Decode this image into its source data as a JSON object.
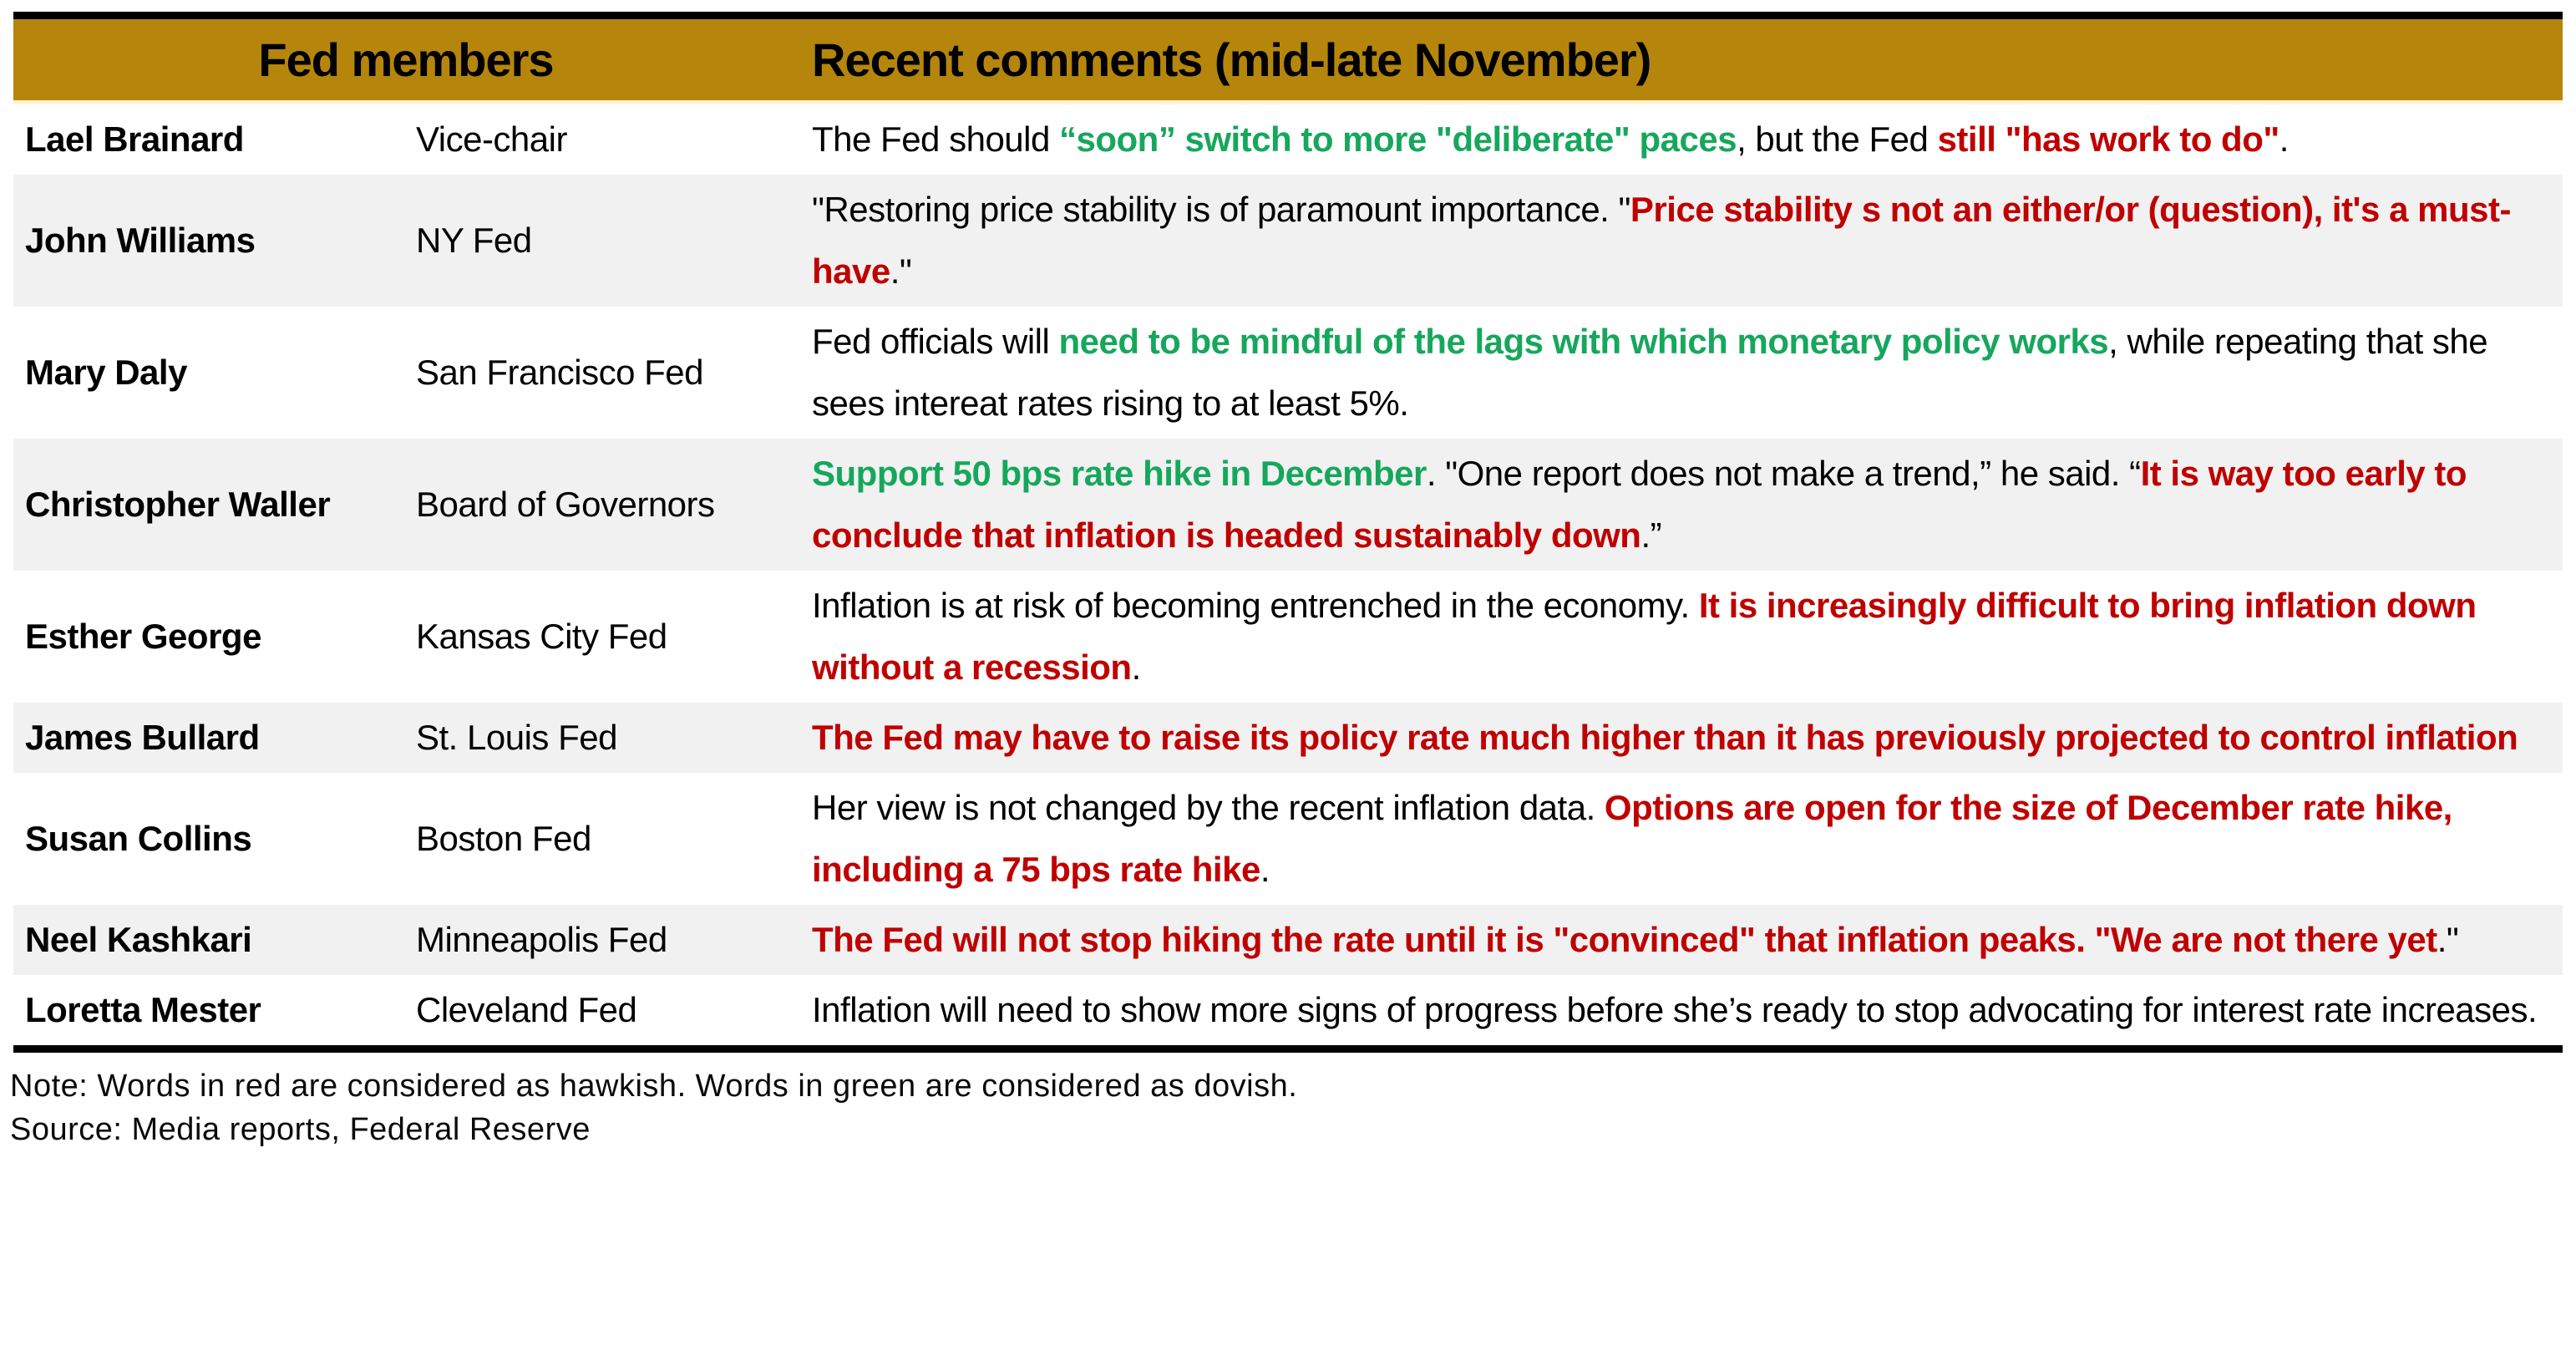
{
  "colors": {
    "header_gold": "#B5860B",
    "hawkish_red": "#C00000",
    "dovish_green": "#16A75C",
    "row_alt_bg": "#F1F1F1",
    "rule_black": "#000000"
  },
  "table": {
    "header": {
      "col_members": "Fed members",
      "col_comments": "Recent comments (mid-late November)"
    },
    "rows": [
      {
        "name": "Lael Brainard",
        "title": "Vice-chair",
        "comment": [
          {
            "text": "The Fed should ",
            "color": "black"
          },
          {
            "text": "“soon” switch to more \"deliberate\" paces",
            "color": "green"
          },
          {
            "text": ", but the Fed ",
            "color": "black"
          },
          {
            "text": "still \"has work to do\"",
            "color": "red"
          },
          {
            "text": ".",
            "color": "black"
          }
        ]
      },
      {
        "name": "John Williams",
        "title": "NY Fed",
        "comment": [
          {
            "text": "\"Restoring price stability is of paramount importance. \"",
            "color": "black"
          },
          {
            "text": "Price stability s not an either/or (question), it's a must-have",
            "color": "red"
          },
          {
            "text": ".\"",
            "color": "black"
          }
        ]
      },
      {
        "name": "Mary Daly",
        "title": "San Francisco Fed",
        "comment": [
          {
            "text": "Fed officials will ",
            "color": "black"
          },
          {
            "text": "need to be mindful of the lags with which monetary policy works",
            "color": "green"
          },
          {
            "text": ", while repeating that she sees intereat rates rising to at least 5%.",
            "color": "black"
          }
        ]
      },
      {
        "name": "Christopher Waller",
        "title": "Board of Governors",
        "comment": [
          {
            "text": "Support 50 bps rate hike in December",
            "color": "green"
          },
          {
            "text": ". \"One report does not make a trend,” he said. “",
            "color": "black"
          },
          {
            "text": "It is way too early to conclude that inflation is headed sustainably down",
            "color": "red"
          },
          {
            "text": ".”",
            "color": "black"
          }
        ]
      },
      {
        "name": "Esther George",
        "title": "Kansas City Fed",
        "comment": [
          {
            "text": "Inflation is at risk of becoming entrenched in the economy. ",
            "color": "black"
          },
          {
            "text": "It is increasingly difficult to bring inflation down without a recession",
            "color": "red"
          },
          {
            "text": ".",
            "color": "black"
          }
        ]
      },
      {
        "name": "James Bullard",
        "title": "St. Louis Fed",
        "comment": [
          {
            "text": "The Fed may have to raise its policy rate much higher than it has previously projected to control inflation",
            "color": "red"
          }
        ]
      },
      {
        "name": "Susan Collins",
        "title": "Boston Fed",
        "comment": [
          {
            "text": "Her view is not changed by the recent inflation data. ",
            "color": "black"
          },
          {
            "text": "Options are open for the size of December rate hike, including a 75 bps rate hike",
            "color": "red"
          },
          {
            "text": ".",
            "color": "black"
          }
        ]
      },
      {
        "name": "Neel Kashkari",
        "title": "Minneapolis Fed",
        "comment": [
          {
            "text": "The Fed will not stop hiking the rate until it is \"convinced\" that inflation peaks. \"We are not there yet",
            "color": "red"
          },
          {
            "text": ".\"",
            "color": "black"
          }
        ]
      },
      {
        "name": "Loretta Mester",
        "title": "Cleveland Fed",
        "comment": [
          {
            "text": " Inflation will need to show more signs of progress before she’s ready to stop advocating for interest rate increases.",
            "color": "black"
          }
        ]
      }
    ]
  },
  "footer": {
    "note": "Note: Words in red are considered as hawkish. Words in green are considered as dovish.",
    "source": "Source: Media reports, Federal Reserve"
  }
}
